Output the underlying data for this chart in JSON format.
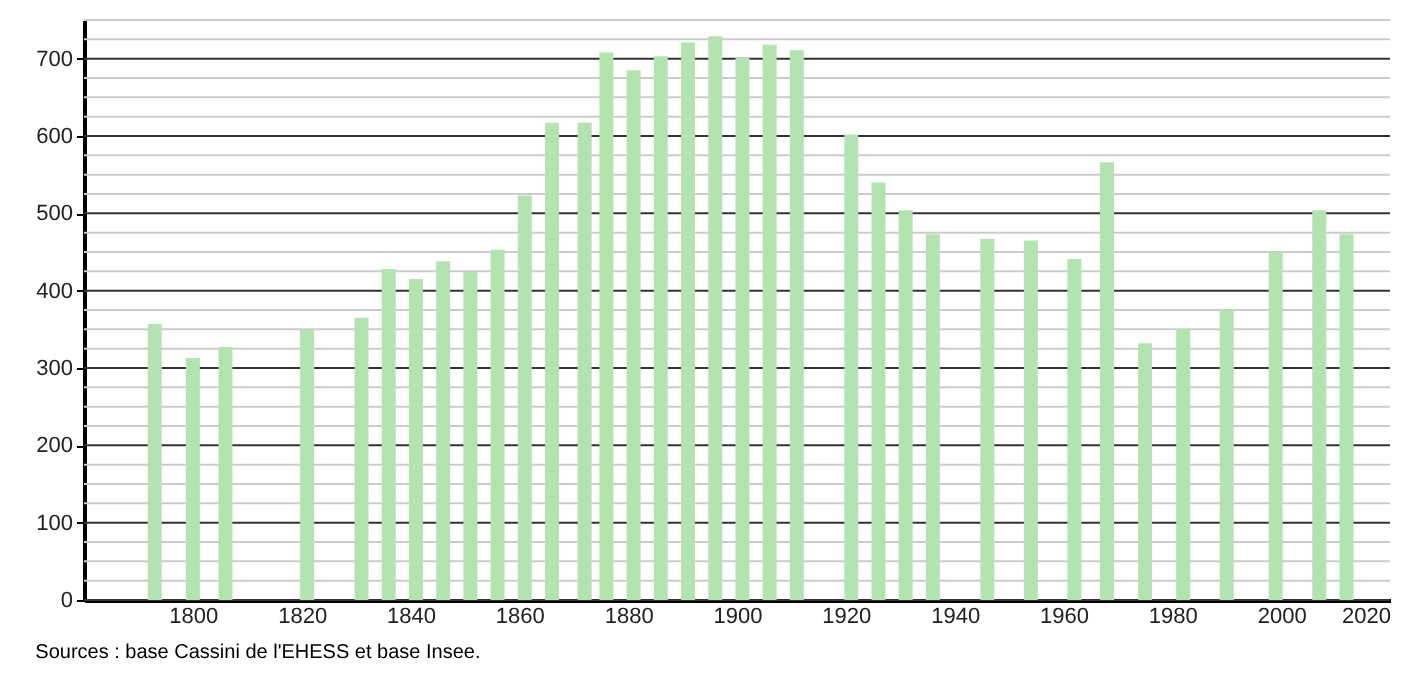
{
  "chart_data": {
    "type": "bar",
    "x": [
      "1793",
      "1800",
      "1806",
      "1821",
      "1831",
      "1836",
      "1841",
      "1846",
      "1851",
      "1856",
      "1861",
      "1866",
      "1872",
      "1876",
      "1881",
      "1886",
      "1891",
      "1896",
      "1901",
      "1906",
      "1911",
      "1921",
      "1926",
      "1931",
      "1936",
      "1946",
      "1954",
      "1962",
      "1968",
      "1975",
      "1982",
      "1990",
      "1999",
      "2007",
      "2012"
    ],
    "series": [
      {
        "color": "#b3e4b0",
        "values": [
          357,
          313,
          327,
          349,
          365,
          428,
          415,
          438,
          424,
          453,
          523,
          617,
          617,
          708,
          685,
          703,
          721,
          729,
          701,
          718,
          711,
          602,
          540,
          504,
          473,
          467,
          465,
          441,
          566,
          332,
          350,
          375,
          450,
          504,
          473
        ]
      }
    ],
    "xlim": [
      "1780",
      "2020"
    ],
    "xticks": [
      "1800",
      "1820",
      "1840",
      "1860",
      "1880",
      "1900",
      "1920",
      "1940",
      "1960",
      "1980",
      "2000",
      "2020"
    ],
    "ylim": [
      0,
      750
    ],
    "yticks": [
      0,
      {
        "value": 25,
        "label": null
      },
      {
        "value": 50,
        "label": null
      },
      {
        "value": 75,
        "label": null
      },
      100,
      {
        "value": 125,
        "label": null
      },
      {
        "value": 150,
        "label": null
      },
      {
        "value": 175,
        "label": null
      },
      200,
      {
        "value": 225,
        "label": null
      },
      {
        "value": 250,
        "label": null
      },
      {
        "value": 275,
        "label": null
      },
      300,
      {
        "value": 325,
        "label": null
      },
      {
        "value": 350,
        "label": null
      },
      {
        "value": 375,
        "label": null
      },
      400,
      {
        "value": 425,
        "label": null
      },
      {
        "value": 450,
        "label": null
      },
      {
        "value": 475,
        "label": null
      },
      500,
      {
        "value": 525,
        "label": null
      },
      {
        "value": 550,
        "label": null
      },
      {
        "value": 575,
        "label": null
      },
      600,
      {
        "value": 625,
        "label": null
      },
      {
        "value": 650,
        "label": null
      },
      {
        "value": 675,
        "label": null
      },
      700,
      {
        "value": 725,
        "label": null
      },
      {
        "value": 750,
        "label": null
      }
    ],
    "grid": "y",
    "annotations": [
      "Sources : base Cassini de l'EHESS et base Insee."
    ]
  }
}
